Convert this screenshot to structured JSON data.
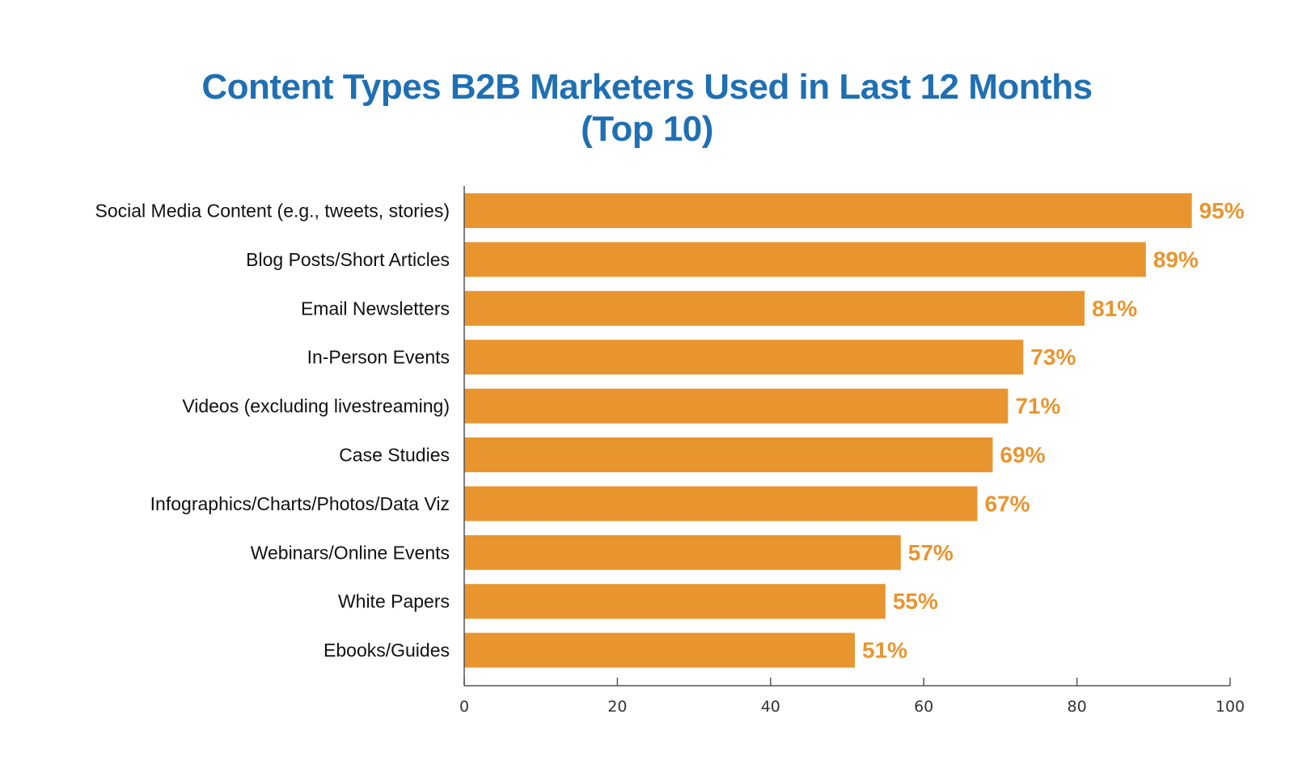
{
  "chart_data": {
    "type": "bar",
    "orientation": "horizontal",
    "title": "Content Types B2B Marketers Used in Last 12 Months (Top 10)",
    "title_lines": [
      "Content Types B2B Marketers Used in Last 12 Months",
      "(Top 10)"
    ],
    "categories": [
      "Social Media Content (e.g., tweets, stories)",
      "Blog Posts/Short Articles",
      "Email Newsletters",
      "In-Person Events",
      "Videos (excluding livestreaming)",
      "Case Studies",
      "Infographics/Charts/Photos/Data Viz",
      "Webinars/Online Events",
      "White Papers",
      "Ebooks/Guides"
    ],
    "values": [
      95,
      89,
      81,
      73,
      71,
      69,
      67,
      57,
      55,
      51
    ],
    "value_labels": [
      "95%",
      "89%",
      "81%",
      "73%",
      "71%",
      "69%",
      "67%",
      "57%",
      "55%",
      "51%"
    ],
    "xlabel": "",
    "ylabel": "",
    "xlim": [
      0,
      100
    ],
    "xticks": [
      0,
      20,
      40,
      60,
      80,
      100
    ],
    "xtick_labels": [
      "0",
      "20",
      "40",
      "60",
      "80",
      "100"
    ],
    "grid": false,
    "colors": {
      "bar": "#e8952f",
      "value_label": "#e8952f",
      "title": "#1f6fb2",
      "axis": "#555555"
    }
  }
}
